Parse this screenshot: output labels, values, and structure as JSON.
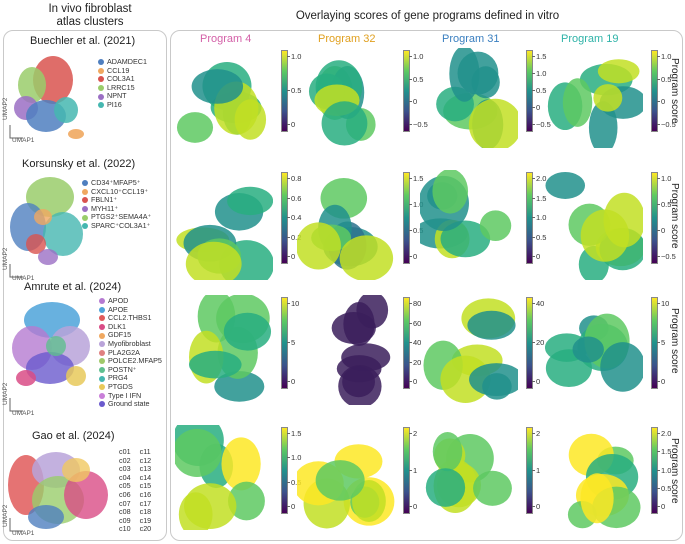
{
  "left_header": "In vivo fibroblast\natlas clusters",
  "right_header": "Overlaying scores of gene programs defined in vitro",
  "umap": {
    "x": "UMAP1",
    "y": "UMAP2"
  },
  "datasets": [
    {
      "title": "Buechler et al. (2021)",
      "legend": [
        {
          "label": "ADAMDEC1",
          "color": "#4f7fbf"
        },
        {
          "label": "CCL19",
          "color": "#f0a860"
        },
        {
          "label": "COL3A1",
          "color": "#d9534f"
        },
        {
          "label": "LRRC15",
          "color": "#9acd6b"
        },
        {
          "label": "NPNT",
          "color": "#9b6fc4"
        },
        {
          "label": "PI16",
          "color": "#45b7b0"
        }
      ]
    },
    {
      "title": "Korsunsky et al. (2022)",
      "legend": [
        {
          "label": "CD34⁺MFAP5⁺",
          "color": "#4f7fbf"
        },
        {
          "label": "CXCL10⁺CCL19⁺",
          "color": "#f0a860"
        },
        {
          "label": "FBLN1⁺",
          "color": "#d9534f"
        },
        {
          "label": "MYH11⁺",
          "color": "#9b6fc4"
        },
        {
          "label": "PTGS2⁺SEMA4A⁺",
          "color": "#9acd6b"
        },
        {
          "label": "SPARC⁺COL3A1⁺",
          "color": "#45b7b0"
        }
      ]
    },
    {
      "title": "Amrute et al. (2024)",
      "legend": [
        {
          "label": "APOD",
          "color": "#b57ad1"
        },
        {
          "label": "APOE",
          "color": "#4ea3d9"
        },
        {
          "label": "CCL2.THBS1",
          "color": "#e05a5a"
        },
        {
          "label": "DLK1",
          "color": "#d94c86"
        },
        {
          "label": "GDF15",
          "color": "#f0a860"
        },
        {
          "label": "Myofibroblast",
          "color": "#b9a3d9"
        },
        {
          "label": "PLA2G2A",
          "color": "#e08080"
        },
        {
          "label": "POLCE2.MFAP5",
          "color": "#a0c96a"
        },
        {
          "label": "POSTN⁺",
          "color": "#5fbf8f"
        },
        {
          "label": "PRG4",
          "color": "#45b7b0"
        },
        {
          "label": "PTGDS",
          "color": "#e8c95a"
        },
        {
          "label": "Type I IFN",
          "color": "#c97fd9"
        },
        {
          "label": "Ground state",
          "color": "#6a5acd"
        }
      ]
    },
    {
      "title": "Gao et al. (2024)",
      "legend_col1": [
        {
          "label": "c01",
          "color": "#e05a5a"
        },
        {
          "label": "c02",
          "color": "#4f7fbf"
        },
        {
          "label": "c03",
          "color": "#5fbf6f"
        },
        {
          "label": "c04",
          "color": "#9b6fc4"
        },
        {
          "label": "c05",
          "color": "#f0a860"
        },
        {
          "label": "c06",
          "color": "#c0b040"
        },
        {
          "label": "c07",
          "color": "#a67c52"
        },
        {
          "label": "c08",
          "color": "#e28bc4"
        },
        {
          "label": "c09",
          "color": "#8a8a8a"
        },
        {
          "label": "c10",
          "color": "#b9c94a"
        }
      ],
      "legend_col2": [
        {
          "label": "c11",
          "color": "#45b7b0"
        },
        {
          "label": "c12",
          "color": "#7fa3d9"
        },
        {
          "label": "c13",
          "color": "#9acd6b"
        },
        {
          "label": "c14",
          "color": "#d94c86"
        },
        {
          "label": "c15",
          "color": "#f0c860"
        },
        {
          "label": "c16",
          "color": "#c98060"
        },
        {
          "label": "c17",
          "color": "#6fbf9f"
        },
        {
          "label": "c18",
          "color": "#b57ad1"
        },
        {
          "label": "c19",
          "color": "#8fb0d0"
        },
        {
          "label": "c20",
          "color": "#7a5acd"
        }
      ]
    }
  ],
  "programs": [
    {
      "label": "Program 4",
      "color": "#d461a8"
    },
    {
      "label": "Program 32",
      "color": "#e0a020"
    },
    {
      "label": "Program 31",
      "color": "#3a7fc0"
    },
    {
      "label": "Program 19",
      "color": "#2fb3a8"
    }
  ],
  "score_label": "Program score",
  "colorbars": [
    [
      [
        "1.0",
        "0.5",
        "0"
      ],
      [
        "1.0",
        "0.5",
        "0",
        "−0.5"
      ],
      [
        "1.5",
        "1.0",
        "0.5",
        "0",
        "−0.5"
      ],
      [
        "1.0",
        "0.5",
        "0",
        "−0.5"
      ]
    ],
    [
      [
        "0.8",
        "0.6",
        "0.4",
        "0.2",
        "0"
      ],
      [
        "1.5",
        "1.0",
        "0.5",
        "0"
      ],
      [
        "2.0",
        "1.5",
        "1.0",
        "0.5",
        "0"
      ],
      [
        "1.0",
        "0.5",
        "0",
        "−0.5"
      ]
    ],
    [
      [
        "10",
        "5",
        "0"
      ],
      [
        "80",
        "60",
        "40",
        "20",
        "0"
      ],
      [
        "40",
        "20",
        "0"
      ],
      [
        "10",
        "5",
        "0"
      ]
    ],
    [
      [
        "1.5",
        "1.0",
        "0.5",
        "0"
      ],
      [
        "2",
        "1",
        "0"
      ],
      [
        "2",
        "1",
        "0"
      ],
      [
        "2.0",
        "1.5",
        "1.0",
        "0.5",
        "0"
      ]
    ]
  ]
}
